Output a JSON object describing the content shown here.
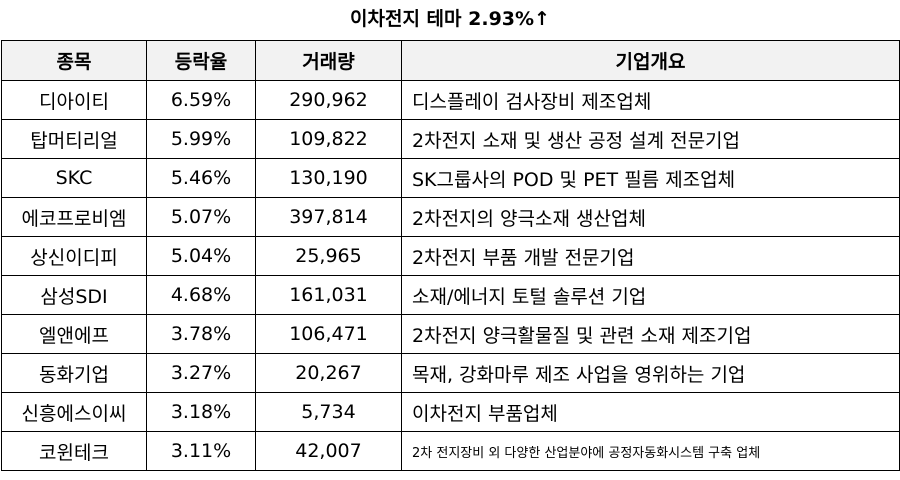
{
  "title": "이차전지 테마 2.93%↑",
  "headers": [
    "종목",
    "등락율",
    "거래량",
    "기업개요"
  ],
  "rows": [
    {
      "name": "디아이티",
      "change": "6.59%",
      "volume": "290,962",
      "desc": "디스플레이 검사장비 제조업체"
    },
    {
      "name": "탑머티리얼",
      "change": "5.99%",
      "volume": "109,822",
      "desc": "2차전지 소재 및 생산 공정 설계 전문기업"
    },
    {
      "name": "SKC",
      "change": "5.46%",
      "volume": "130,190",
      "desc": "SK그룹사의 POD 및 PET 필름 제조업체"
    },
    {
      "name": "에코프로비엠",
      "change": "5.07%",
      "volume": "397,814",
      "desc": "2차전지의 양극소재 생산업체"
    },
    {
      "name": "상신이디피",
      "change": "5.04%",
      "volume": "25,965",
      "desc": "2차전지 부품 개발 전문기업"
    },
    {
      "name": "삼성SDI",
      "change": "4.68%",
      "volume": "161,031",
      "desc": "소재/에너지 토털 솔루션 기업"
    },
    {
      "name": "엘앤에프",
      "change": "3.78%",
      "volume": "106,471",
      "desc": "2차전지 양극활물질 및 관련 소재 제조기업"
    },
    {
      "name": "동화기업",
      "change": "3.27%",
      "volume": "20,267",
      "desc": "목재, 강화마루 제조 사업을 영위하는 기업"
    },
    {
      "name": "신흥에스이씨",
      "change": "3.18%",
      "volume": "5,734",
      "desc": "이차전지 부품업체"
    },
    {
      "name": "코윈테크",
      "change": "3.11%",
      "volume": "42,007",
      "desc": "2차 전지장비 외 다양한 산업분야에 공정자동화시스템 구축 업체"
    }
  ]
}
